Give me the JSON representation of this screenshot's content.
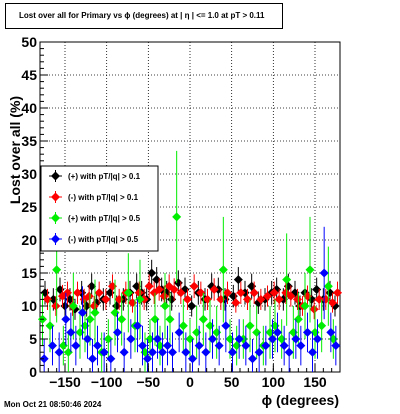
{
  "title": "Lost over all for Primary vs ϕ (degrees) at |  η | <= 1.0 at pT > 0.11",
  "timestamp": "Mon Oct 21 08:50:46 2024",
  "colors": {
    "s1": "#000000",
    "s2": "#ff0000",
    "s3": "#00ee00",
    "s4": "#0000ff",
    "grid": "#000000"
  },
  "chart_data": {
    "type": "scatter",
    "xlabel": "ϕ (degrees)",
    "ylabel": "Lost over all (%)",
    "xlim": [
      -180,
      180
    ],
    "ylim": [
      0,
      50
    ],
    "x_ticks": [
      -150,
      -100,
      -50,
      0,
      50,
      100,
      150
    ],
    "y_ticks": [
      0,
      5,
      10,
      15,
      20,
      25,
      30,
      35,
      40,
      45,
      50
    ],
    "x_tick_labels": [
      "−150",
      "−100",
      "−50",
      "0",
      "50",
      "100",
      "150"
    ],
    "y_tick_labels": [
      "0",
      "5",
      "10",
      "15",
      "20",
      "25",
      "30",
      "35",
      "40",
      "45",
      "50"
    ],
    "grid": true,
    "legend_position": "middle-left",
    "series": [
      {
        "name": "(+) with pT/|q| > 0.1",
        "color": "#000000",
        "x": [
          -174,
          -164,
          -156,
          -150,
          -144,
          -138,
          -130,
          -124,
          -118,
          -112,
          -104,
          -96,
          -88,
          -80,
          -72,
          -64,
          -58,
          -52,
          -46,
          -40,
          -34,
          -28,
          -22,
          -14,
          -6,
          2,
          10,
          18,
          26,
          34,
          42,
          52,
          58,
          66,
          74,
          82,
          90,
          98,
          104,
          112,
          118,
          126,
          132,
          138,
          146,
          152,
          160,
          168,
          174
        ],
        "y": [
          12,
          11,
          12.5,
          10,
          11,
          9.5,
          12,
          10,
          13,
          10.5,
          11,
          12,
          10,
          11,
          12,
          13,
          12,
          11,
          15,
          14,
          12.5,
          12,
          11,
          13.5,
          12.5,
          10,
          12,
          11,
          13,
          12.5,
          11,
          11.5,
          14,
          12,
          13,
          10.5,
          11,
          12,
          12.5,
          11,
          13,
          12,
          10,
          12,
          11,
          12.5,
          11,
          12,
          10
        ],
        "err": [
          1.8,
          1.7,
          1.8,
          1.6,
          1.7,
          1.6,
          1.8,
          1.6,
          1.9,
          1.7,
          1.7,
          1.8,
          1.6,
          1.7,
          1.8,
          1.9,
          1.8,
          1.7,
          2.0,
          1.9,
          1.8,
          1.8,
          1.7,
          1.9,
          1.8,
          1.6,
          1.8,
          1.7,
          1.9,
          1.8,
          1.7,
          1.7,
          1.9,
          1.8,
          1.9,
          1.7,
          1.7,
          1.8,
          1.8,
          1.7,
          1.9,
          1.8,
          1.6,
          1.8,
          1.7,
          1.8,
          1.7,
          1.8,
          1.6
        ]
      },
      {
        "name": "(-) with pT/|q| > 0.1",
        "color": "#ff0000",
        "x": [
          -171,
          -161,
          -153,
          -147,
          -141,
          -135,
          -127,
          -121,
          -115,
          -109,
          -101,
          -93,
          -85,
          -77,
          -69,
          -61,
          -55,
          -49,
          -43,
          -37,
          -31,
          -25,
          -19,
          -11,
          -3,
          5,
          13,
          21,
          29,
          37,
          45,
          55,
          61,
          69,
          77,
          85,
          93,
          101,
          107,
          115,
          121,
          129,
          135,
          141,
          149,
          155,
          163,
          171,
          177
        ],
        "y": [
          11,
          10,
          11.5,
          12,
          10,
          12,
          11,
          11.5,
          10,
          12,
          11,
          13,
          11,
          12,
          10.5,
          12,
          11,
          13,
          12,
          12.5,
          11.5,
          13,
          12.5,
          12,
          11,
          13,
          12,
          11,
          12.5,
          11,
          12,
          10.5,
          12,
          11,
          12,
          11,
          11.5,
          12,
          11,
          12,
          11.5,
          11,
          10,
          11.5,
          9.5,
          11,
          11,
          10.5,
          12
        ],
        "err": [
          1.6,
          1.5,
          1.7,
          1.7,
          1.5,
          1.7,
          1.6,
          1.7,
          1.5,
          1.7,
          1.6,
          1.8,
          1.6,
          1.7,
          1.5,
          1.7,
          1.6,
          1.8,
          1.7,
          1.7,
          1.6,
          1.8,
          1.7,
          1.7,
          1.6,
          1.8,
          1.7,
          1.6,
          1.7,
          1.6,
          1.7,
          1.5,
          1.7,
          1.6,
          1.7,
          1.6,
          1.6,
          1.7,
          1.6,
          1.7,
          1.6,
          1.6,
          1.5,
          1.6,
          1.5,
          1.6,
          1.6,
          1.5,
          1.7
        ]
      },
      {
        "name": "(+) with pT/|q| > 0.5",
        "color": "#00ee00",
        "x": [
          -177,
          -168,
          -160,
          -152,
          -146,
          -140,
          -132,
          -126,
          -120,
          -114,
          -106,
          -98,
          -90,
          -82,
          -74,
          -66,
          -60,
          -54,
          -48,
          -42,
          -36,
          -30,
          -24,
          -16,
          -8,
          0,
          8,
          16,
          24,
          32,
          40,
          48,
          56,
          64,
          72,
          80,
          88,
          96,
          102,
          110,
          116,
          124,
          130,
          138,
          144,
          150,
          158,
          166,
          172
        ],
        "y": [
          8,
          7,
          15.5,
          4,
          3,
          10,
          6,
          7,
          8,
          9,
          3,
          5,
          9,
          8,
          12,
          7,
          11,
          3,
          5,
          8,
          4,
          10,
          8,
          23.5,
          7,
          5,
          6,
          8,
          7,
          6,
          15.5,
          5,
          4,
          5,
          7,
          6,
          4,
          6,
          7,
          5,
          14,
          6,
          8,
          10,
          15.5,
          6,
          7,
          13,
          5
        ],
        "err": [
          4,
          4,
          8,
          3,
          3,
          5,
          4,
          4,
          4,
          5,
          3,
          3,
          5,
          4,
          6,
          4,
          6,
          3,
          3,
          4,
          3,
          5,
          4,
          10,
          4,
          3,
          4,
          4,
          4,
          4,
          8,
          3,
          3,
          3,
          4,
          4,
          3,
          4,
          4,
          3,
          7,
          4,
          4,
          5,
          8,
          4,
          4,
          6,
          3
        ]
      },
      {
        "name": "(-) with pT/|q| > 0.5",
        "color": "#0000ff",
        "x": [
          -175,
          -165,
          -157,
          -149,
          -143,
          -137,
          -129,
          -123,
          -117,
          -111,
          -103,
          -95,
          -87,
          -79,
          -71,
          -63,
          -57,
          -51,
          -45,
          -39,
          -33,
          -27,
          -21,
          -13,
          -5,
          3,
          11,
          19,
          27,
          35,
          43,
          51,
          59,
          67,
          75,
          83,
          91,
          99,
          105,
          113,
          119,
          127,
          133,
          141,
          147,
          153,
          161,
          169,
          175
        ],
        "y": [
          2,
          4,
          3,
          8,
          6,
          4,
          9,
          5,
          2,
          4,
          3,
          2,
          6,
          3,
          5,
          7,
          4,
          2,
          3,
          5,
          3,
          4,
          3,
          6,
          3,
          2,
          4,
          3,
          5,
          4,
          7,
          3,
          5,
          4,
          2,
          3,
          4,
          5,
          6,
          4,
          3,
          5,
          4,
          6,
          3,
          5,
          15,
          6,
          4
        ],
        "err": [
          3,
          3,
          3,
          4,
          3,
          3,
          4,
          3,
          3,
          3,
          3,
          3,
          3,
          3,
          3,
          4,
          3,
          3,
          3,
          3,
          3,
          3,
          3,
          3,
          3,
          3,
          3,
          3,
          3,
          3,
          4,
          3,
          3,
          3,
          3,
          3,
          3,
          3,
          3,
          3,
          3,
          3,
          3,
          3,
          3,
          3,
          7,
          3,
          3
        ]
      }
    ]
  }
}
